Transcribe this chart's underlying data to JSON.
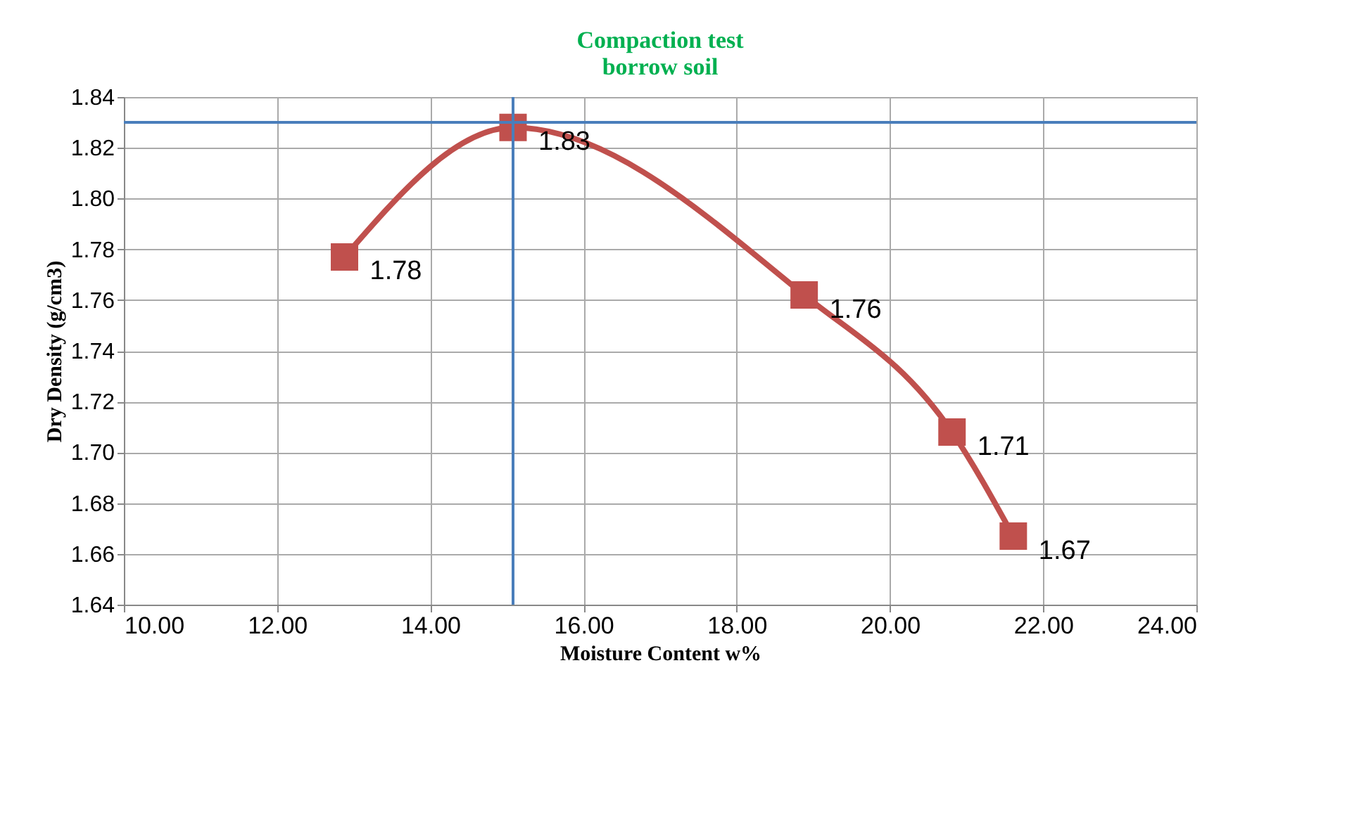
{
  "chart_data": {
    "type": "line",
    "title": [
      "Compaction test",
      "borrow soil"
    ],
    "xlabel": "Moisture Content w%",
    "ylabel": "Dry Density  (g/cm3)",
    "x": [
      12.88,
      15.08,
      18.88,
      20.81,
      21.61
    ],
    "series": [
      {
        "color": "#c0504d",
        "values": [
          1.777,
          1.828,
          1.762,
          1.708,
          1.667
        ],
        "value_labels": [
          "1.78",
          "1.83",
          "1.76",
          "1.71",
          "1.67"
        ]
      }
    ],
    "xlim": [
      10,
      24
    ],
    "xticks": [
      {
        "value": 10,
        "label": "10.00"
      },
      {
        "value": 12,
        "label": "12.00"
      },
      {
        "value": 14,
        "label": "14.00"
      },
      {
        "value": 16,
        "label": "16.00"
      },
      {
        "value": 18,
        "label": "18.00"
      },
      {
        "value": 20,
        "label": "20.00"
      },
      {
        "value": 22,
        "label": "22.00"
      },
      {
        "value": 24,
        "label": "24.00"
      }
    ],
    "ylim": [
      1.64,
      1.84
    ],
    "yticks": [
      {
        "value": 1.64,
        "label": "1.64"
      },
      {
        "value": 1.66,
        "label": "1.66"
      },
      {
        "value": 1.68,
        "label": "1.68"
      },
      {
        "value": 1.7,
        "label": "1.70"
      },
      {
        "value": 1.72,
        "label": "1.72"
      },
      {
        "value": 1.74,
        "label": "1.74"
      },
      {
        "value": 1.76,
        "label": "1.76"
      },
      {
        "value": 1.78,
        "label": "1.78"
      },
      {
        "value": 1.8,
        "label": "1.80"
      },
      {
        "value": 1.82,
        "label": "1.82"
      },
      {
        "value": 1.84,
        "label": "1.84"
      }
    ],
    "ref_lines": [
      {
        "axis": "y",
        "value": 1.83,
        "color": "#4a7ebb"
      },
      {
        "axis": "x",
        "value": 15.08,
        "color": "#4a7ebb"
      }
    ],
    "grid": true,
    "marker": "square",
    "line_style": "solid"
  }
}
